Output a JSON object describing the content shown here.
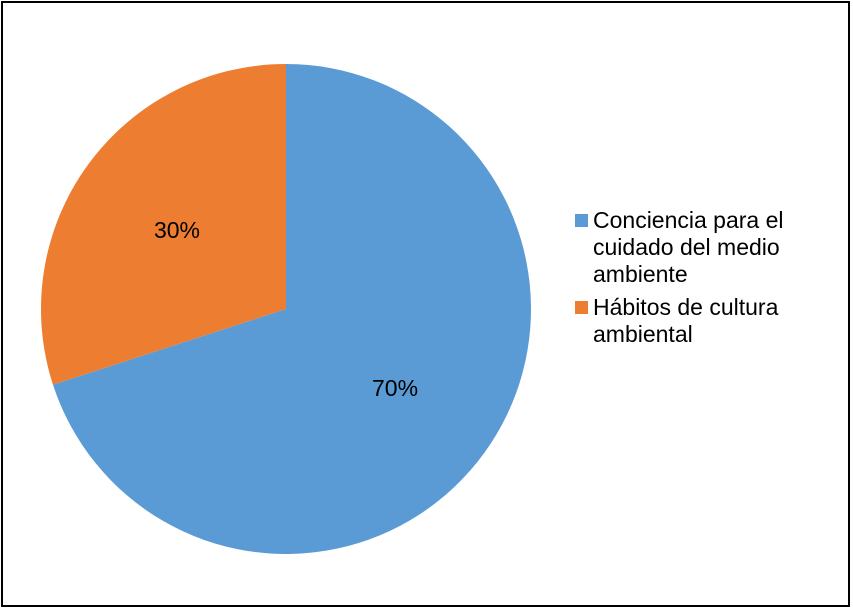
{
  "chart_data": {
    "type": "pie",
    "title": "",
    "categories": [
      "Conciencia para el cuidado del medio ambiente",
      "Hábitos de cultura ambiental"
    ],
    "values": [
      70,
      30
    ],
    "data_labels": [
      "70%",
      "30%"
    ],
    "colors": [
      "#5b9bd5",
      "#ed7d31"
    ],
    "legend_position": "right",
    "start_angle": "12 o'clock, clockwise"
  }
}
